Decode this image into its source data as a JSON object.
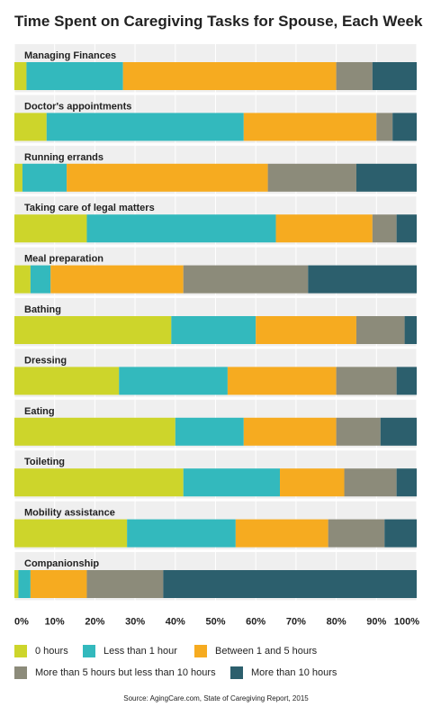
{
  "chart_data": {
    "type": "bar",
    "orientation": "horizontal",
    "stacked": true,
    "title": "Time Spent on Caregiving Tasks for Spouse, Each Week",
    "xlim": [
      0,
      100
    ],
    "x_ticks": [
      "0%",
      "10%",
      "20%",
      "30%",
      "40%",
      "50%",
      "60%",
      "70%",
      "80%",
      "90%",
      "100%"
    ],
    "categories": [
      "Managing Finances",
      "Doctor's appointments",
      "Running errands",
      "Taking care of legal matters",
      "Meal preparation",
      "Bathing",
      "Dressing",
      "Eating",
      "Toileting",
      "Mobility assistance",
      "Companionship"
    ],
    "series": [
      {
        "name": "0 hours",
        "color": "#cdd52b",
        "values": [
          3,
          8,
          2,
          18,
          4,
          39,
          26,
          40,
          42,
          28,
          1
        ]
      },
      {
        "name": "Less than 1 hour",
        "color": "#33b9bd",
        "values": [
          24,
          49,
          11,
          47,
          5,
          21,
          27,
          17,
          24,
          27,
          3
        ]
      },
      {
        "name": "Between 1 and 5 hours",
        "color": "#f6ab20",
        "values": [
          53,
          33,
          50,
          24,
          33,
          25,
          27,
          23,
          16,
          23,
          14
        ]
      },
      {
        "name": "More than 5 hours but less than 10 hours",
        "color": "#8c8b7a",
        "values": [
          9,
          4,
          22,
          6,
          31,
          12,
          15,
          11,
          13,
          14,
          19
        ]
      },
      {
        "name": "More than 10 hours",
        "color": "#2c5f6d",
        "values": [
          11,
          6,
          15,
          5,
          27,
          3,
          5,
          9,
          5,
          8,
          63
        ]
      }
    ],
    "grid": true,
    "legend_position": "bottom"
  },
  "source": "Source: AgingCare.com, State of Caregiving Report, 2015"
}
